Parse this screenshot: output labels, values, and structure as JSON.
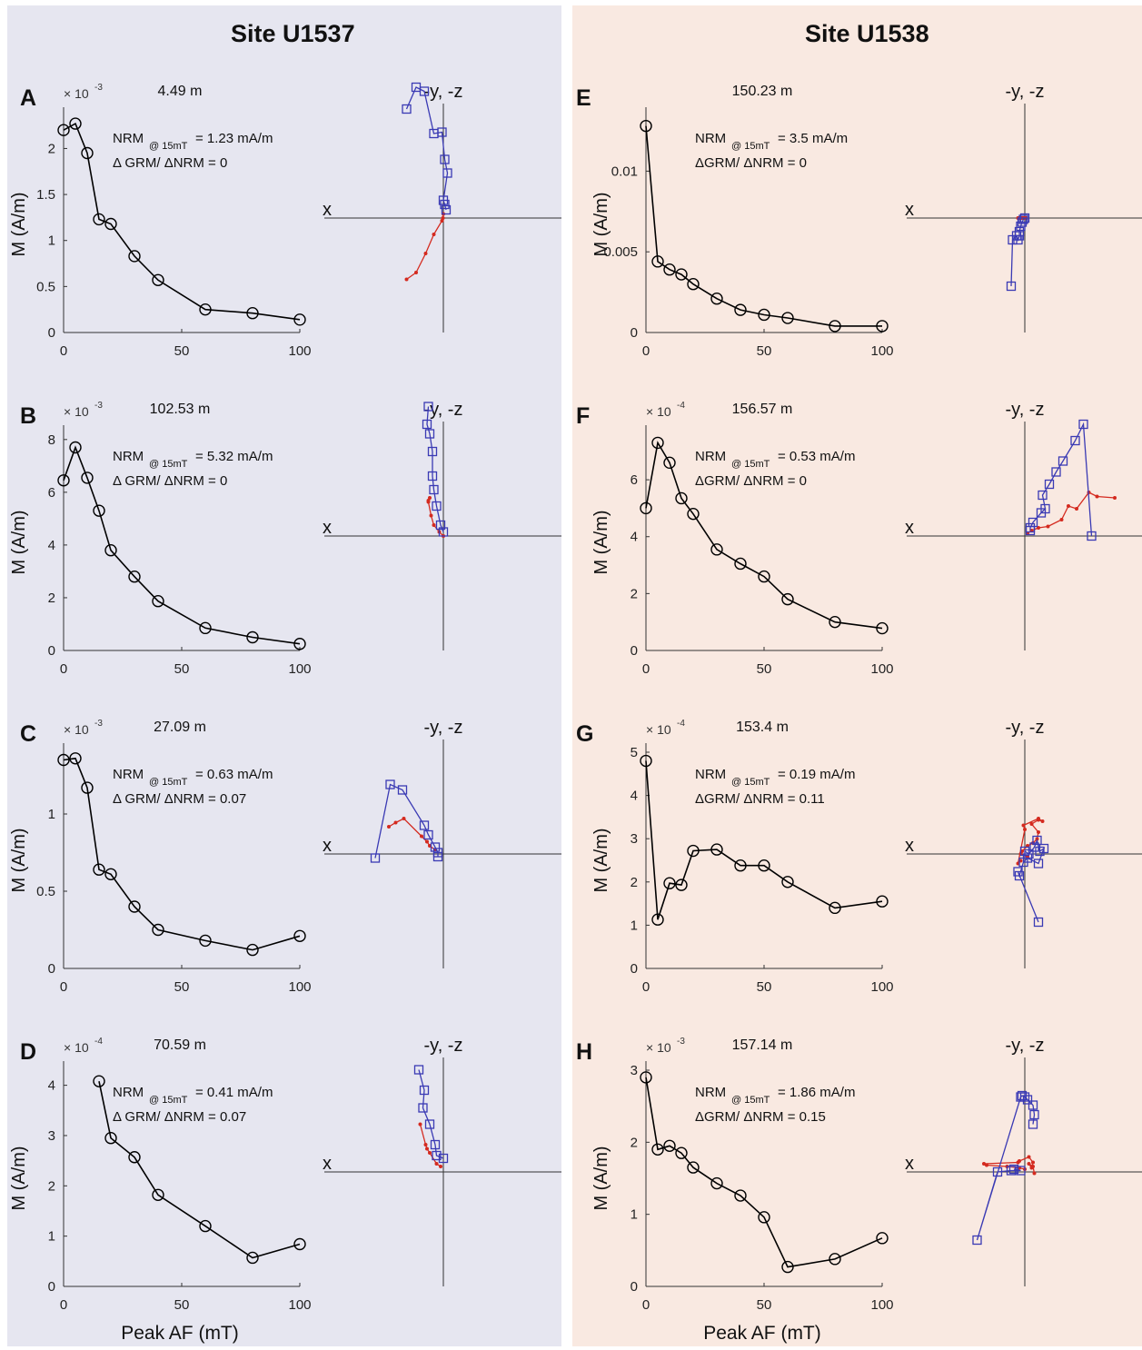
{
  "columns": [
    {
      "title": "Site U1537"
    },
    {
      "title": "Site U1538"
    }
  ],
  "colors": {
    "curve": "#000000",
    "horizontal": "#d42a1f",
    "vertical": "#3a3ab4"
  },
  "zijderveld_labels": {
    "axis_x": "x",
    "axis_top": "-y, -z"
  },
  "chart_data": [
    {
      "panel": "A",
      "type": "line",
      "depth": "4.49 m",
      "nrm": "NRM @ 15mT = 1.23 mA/m",
      "nrm_main": "NRM",
      "nrm_sub": "@ 15mT",
      "nrm_rest": "= 1.23 mA/m",
      "grm": "Δ GRM/ ΔNRM =  0",
      "exponent": "× 10-3",
      "exponent_base": "× 10",
      "exponent_power": "-3",
      "xlabel": "Peak AF (mT)",
      "ylabel": "M (A/m)",
      "xlim": [
        0,
        100
      ],
      "ylim": [
        0,
        2.35
      ],
      "xticks": [
        0,
        50,
        100
      ],
      "yticks": [
        0,
        0.5,
        1,
        1.5,
        2
      ],
      "x": [
        0,
        5,
        10,
        15,
        20,
        30,
        40,
        60,
        80,
        100
      ],
      "y": [
        2.2,
        2.27,
        1.95,
        1.23,
        1.18,
        0.83,
        0.57,
        0.25,
        0.21,
        0.14
      ]
    },
    {
      "panel": "B",
      "type": "line",
      "depth": "102.53 m",
      "nrm": "NRM @ 15mT = 5.32 mA/m",
      "nrm_main": "NRM",
      "nrm_sub": "@ 15mT",
      "nrm_rest": "= 5.32 mA/m",
      "grm": "Δ GRM/ ΔNRM =  0",
      "exponent": "× 10-3",
      "exponent_base": "× 10",
      "exponent_power": "-3",
      "xlabel": "Peak AF (mT)",
      "ylabel": "M (A/m)",
      "xlim": [
        0,
        100
      ],
      "ylim": [
        0,
        8.2
      ],
      "xticks": [
        0,
        50,
        100
      ],
      "yticks": [
        0,
        2,
        4,
        6,
        8
      ],
      "x": [
        0,
        5,
        10,
        15,
        20,
        30,
        40,
        60,
        80,
        100
      ],
      "y": [
        6.45,
        7.7,
        6.55,
        5.3,
        3.8,
        2.8,
        1.87,
        0.85,
        0.5,
        0.25
      ]
    },
    {
      "panel": "C",
      "type": "line",
      "depth": "27.09 m",
      "nrm": "NRM @ 15mT = 0.63 mA/m",
      "nrm_main": "NRM",
      "nrm_sub": "@ 15mT",
      "nrm_rest": "= 0.63 mA/m",
      "grm": "Δ GRM/ ΔNRM = 0.07",
      "exponent": "× 10-3",
      "exponent_base": "× 10",
      "exponent_power": "-3",
      "xlabel": "Peak AF (mT)",
      "ylabel": "M (A/m)",
      "xlim": [
        0,
        100
      ],
      "ylim": [
        0,
        1.4
      ],
      "xticks": [
        0,
        50,
        100
      ],
      "yticks": [
        0,
        0.5,
        1
      ],
      "x": [
        0,
        5,
        10,
        15,
        20,
        30,
        40,
        60,
        80,
        100
      ],
      "y": [
        1.35,
        1.36,
        1.17,
        0.64,
        0.61,
        0.4,
        0.25,
        0.18,
        0.12,
        0.21
      ]
    },
    {
      "panel": "D",
      "type": "line",
      "depth": "70.59 m",
      "nrm": "NRM @ 15mT = 0.41 mA/m",
      "nrm_main": "NRM",
      "nrm_sub": "@ 15mT",
      "nrm_rest": "= 0.41 mA/m",
      "grm": "Δ GRM/ ΔNRM = 0.07",
      "exponent": "× 10-4",
      "exponent_base": "× 10",
      "exponent_power": "-4",
      "xlabel": "Peak AF (mT)",
      "ylabel": "M (A/m)",
      "show_xlabel": true,
      "xlim": [
        0,
        100
      ],
      "ylim": [
        0,
        4.3
      ],
      "xticks": [
        0,
        50,
        100
      ],
      "yticks": [
        0,
        1,
        2,
        3,
        4
      ],
      "x": [
        15,
        20,
        30,
        40,
        60,
        80,
        100
      ],
      "y": [
        4.08,
        2.95,
        2.57,
        1.82,
        1.2,
        0.57,
        0.84
      ]
    },
    {
      "panel": "E",
      "type": "line",
      "depth": "150.23 m",
      "nrm": "NRM @ 15mT = 3.5 mA/m",
      "nrm_main": "NRM",
      "nrm_sub": "@ 15mT",
      "nrm_rest": "= 3.5 mA/m",
      "grm": "ΔGRM/ ΔNRM = 0",
      "exponent": "",
      "exponent_base": "",
      "exponent_power": "",
      "xlabel": "Peak AF (mT)",
      "ylabel": "M (A/m)",
      "xlim": [
        0,
        100
      ],
      "ylim": [
        0,
        0.0134
      ],
      "xticks": [
        0,
        50,
        100
      ],
      "yticks": [
        0,
        0.005,
        0.01
      ],
      "x": [
        0,
        5,
        10,
        15,
        20,
        30,
        40,
        50,
        60,
        80,
        100
      ],
      "y": [
        0.0128,
        0.0044,
        0.0039,
        0.0036,
        0.003,
        0.0021,
        0.0014,
        0.0011,
        0.0009,
        0.0004,
        0.0004
      ]
    },
    {
      "panel": "F",
      "type": "line",
      "depth": "156.57 m",
      "nrm": "NRM @ 15mT = 0.53 mA/m",
      "nrm_main": "NRM",
      "nrm_sub": "@ 15mT",
      "nrm_rest": "= 0.53 mA/m",
      "grm": "ΔGRM/ ΔNRM = 0",
      "exponent": "× 10-4",
      "exponent_base": "× 10",
      "exponent_power": "-4",
      "xlabel": "Peak AF (mT)",
      "ylabel": "M (A/m)",
      "xlim": [
        0,
        100
      ],
      "ylim": [
        0,
        7.6
      ],
      "xticks": [
        0,
        50,
        100
      ],
      "yticks": [
        0,
        2,
        4,
        6
      ],
      "x": [
        0,
        5,
        10,
        15,
        20,
        30,
        40,
        50,
        60,
        80,
        100
      ],
      "y": [
        5.0,
        7.3,
        6.6,
        5.35,
        4.8,
        3.55,
        3.05,
        2.6,
        1.8,
        1.0,
        0.78
      ]
    },
    {
      "panel": "G",
      "type": "line",
      "depth": "153.4 m",
      "nrm": "NRM @ 15mT = 0.19 mA/m",
      "nrm_main": "NRM",
      "nrm_sub": "@ 15mT",
      "nrm_rest": "= 0.19 mA/m",
      "grm": "ΔGRM/ ΔNRM = 0.11",
      "exponent": "× 10-4",
      "exponent_base": "× 10",
      "exponent_power": "-4",
      "xlabel": "Peak AF (mT)",
      "ylabel": "M (A/m)",
      "xlim": [
        0,
        100
      ],
      "ylim": [
        0,
        5
      ],
      "xticks": [
        0,
        50,
        100
      ],
      "yticks": [
        0,
        1,
        2,
        3,
        4,
        5
      ],
      "x": [
        0,
        5,
        10,
        15,
        20,
        30,
        40,
        50,
        60,
        80,
        100
      ],
      "y": [
        4.8,
        1.13,
        1.97,
        1.93,
        2.72,
        2.75,
        2.38,
        2.38,
        2.0,
        1.4,
        1.55
      ]
    },
    {
      "panel": "H",
      "type": "line",
      "depth": "157.14 m",
      "nrm": "NRM @ 15mT = 1.86 mA/m",
      "nrm_main": "NRM",
      "nrm_sub": "@ 15mT",
      "nrm_rest": "= 1.86 mA/m",
      "grm": "ΔGRM/ ΔNRM = 0.15",
      "exponent": "× 10-3",
      "exponent_base": "× 10",
      "exponent_power": "-3",
      "xlabel": "Peak AF (mT)",
      "ylabel": "M (A/m)",
      "show_xlabel": true,
      "xlim": [
        0,
        100
      ],
      "ylim": [
        0,
        3
      ],
      "xticks": [
        0,
        50,
        100
      ],
      "yticks": [
        0,
        1,
        2,
        3
      ],
      "x": [
        0,
        5,
        10,
        15,
        20,
        30,
        40,
        50,
        60,
        80,
        100
      ],
      "y": [
        2.9,
        1.9,
        1.95,
        1.85,
        1.65,
        1.43,
        1.26,
        0.96,
        0.27,
        0.38,
        0.67
      ]
    }
  ],
  "zijderveld": [
    {
      "panel": "A",
      "horizontal": [
        [
          0.0,
          0.03
        ],
        [
          -0.003,
          0.0
        ],
        [
          -0.01,
          -0.02
        ],
        [
          -0.07,
          -0.12
        ],
        [
          -0.13,
          -0.26
        ],
        [
          -0.2,
          -0.4
        ],
        [
          -0.27,
          -0.45
        ]
      ],
      "vertical": [
        [
          0.02,
          0.06
        ],
        [
          0.01,
          0.1
        ],
        [
          0.0,
          0.13
        ],
        [
          0.03,
          0.33
        ],
        [
          0.01,
          0.43
        ],
        [
          -0.01,
          0.63
        ],
        [
          -0.07,
          0.62
        ],
        [
          -0.14,
          0.93
        ],
        [
          -0.2,
          0.96
        ],
        [
          -0.27,
          0.8
        ]
      ]
    },
    {
      "panel": "B",
      "horizontal": [
        [
          0.0,
          0.0
        ],
        [
          -0.03,
          0.03
        ],
        [
          -0.07,
          0.08
        ],
        [
          -0.09,
          0.15
        ],
        [
          -0.11,
          0.25
        ],
        [
          -0.1,
          0.28
        ],
        [
          -0.11,
          0.26
        ]
      ],
      "vertical": [
        [
          0.0,
          0.03
        ],
        [
          -0.02,
          0.08
        ],
        [
          -0.05,
          0.22
        ],
        [
          -0.07,
          0.34
        ],
        [
          -0.08,
          0.44
        ],
        [
          -0.08,
          0.62
        ],
        [
          -0.1,
          0.75
        ],
        [
          -0.12,
          0.82
        ],
        [
          -0.11,
          0.95
        ]
      ]
    },
    {
      "panel": "C",
      "horizontal": [
        [
          -0.06,
          0.03
        ],
        [
          -0.1,
          0.06
        ],
        [
          -0.12,
          0.09
        ],
        [
          -0.16,
          0.13
        ],
        [
          -0.29,
          0.26
        ],
        [
          -0.35,
          0.23
        ],
        [
          -0.4,
          0.2
        ]
      ],
      "vertical": [
        [
          -0.04,
          -0.02
        ],
        [
          -0.04,
          0.01
        ],
        [
          -0.06,
          0.05
        ],
        [
          -0.11,
          0.14
        ],
        [
          -0.14,
          0.21
        ],
        [
          -0.3,
          0.47
        ],
        [
          -0.39,
          0.51
        ],
        [
          -0.5,
          -0.03
        ]
      ]
    },
    {
      "panel": "D",
      "horizontal": [
        [
          -0.02,
          0.04
        ],
        [
          -0.05,
          0.06
        ],
        [
          -0.1,
          0.14
        ],
        [
          -0.12,
          0.17
        ],
        [
          -0.13,
          0.2
        ],
        [
          -0.17,
          0.35
        ]
      ],
      "vertical": [
        [
          0.0,
          0.1
        ],
        [
          -0.05,
          0.12
        ],
        [
          -0.06,
          0.2
        ],
        [
          -0.1,
          0.35
        ],
        [
          -0.15,
          0.47
        ],
        [
          -0.14,
          0.6
        ],
        [
          -0.18,
          0.75
        ]
      ]
    },
    {
      "panel": "E",
      "horizontal": [
        [
          0.01,
          0.0
        ],
        [
          0.0,
          0.0
        ],
        [
          -0.02,
          0.0
        ],
        [
          -0.01,
          0.0
        ],
        [
          -0.02,
          0.0
        ],
        [
          -0.04,
          0.0
        ],
        [
          -0.05,
          0.0
        ],
        [
          -0.04,
          0.0
        ]
      ],
      "vertical": [
        [
          0.0,
          0.0
        ],
        [
          -0.01,
          -0.01
        ],
        [
          -0.02,
          -0.03
        ],
        [
          -0.03,
          -0.06
        ],
        [
          -0.04,
          -0.1
        ],
        [
          -0.04,
          -0.13
        ],
        [
          -0.05,
          -0.16
        ],
        [
          -0.06,
          -0.13
        ],
        [
          -0.09,
          -0.16
        ],
        [
          -0.1,
          -0.5
        ]
      ]
    },
    {
      "panel": "F",
      "horizontal": [
        [
          0.02,
          0.02
        ],
        [
          0.05,
          0.04
        ],
        [
          0.1,
          0.06
        ],
        [
          0.17,
          0.07
        ],
        [
          0.27,
          0.12
        ],
        [
          0.32,
          0.22
        ],
        [
          0.38,
          0.2
        ],
        [
          0.47,
          0.32
        ],
        [
          0.53,
          0.29
        ],
        [
          0.66,
          0.28
        ]
      ],
      "vertical": [
        [
          0.04,
          0.04
        ],
        [
          0.04,
          0.06
        ],
        [
          0.06,
          0.1
        ],
        [
          0.12,
          0.17
        ],
        [
          0.15,
          0.2
        ],
        [
          0.13,
          0.3
        ],
        [
          0.18,
          0.38
        ],
        [
          0.23,
          0.47
        ],
        [
          0.28,
          0.55
        ],
        [
          0.37,
          0.7
        ],
        [
          0.43,
          0.82
        ],
        [
          0.49,
          0.0
        ]
      ]
    },
    {
      "panel": "G",
      "horizontal": [
        [
          0.02,
          -0.02
        ],
        [
          -0.03,
          0.0
        ],
        [
          -0.02,
          0.02
        ],
        [
          0.02,
          0.06
        ],
        [
          0.06,
          0.08
        ],
        [
          0.09,
          0.11
        ],
        [
          0.1,
          0.16
        ],
        [
          0.05,
          0.22
        ],
        [
          0.1,
          0.25
        ],
        [
          0.13,
          0.24
        ],
        [
          0.1,
          0.26
        ],
        [
          -0.01,
          0.21
        ],
        [
          0.0,
          0.18
        ],
        [
          -0.05,
          -0.07
        ],
        [
          -0.03,
          -0.05
        ]
      ],
      "vertical": [
        [
          0.0,
          0.02
        ],
        [
          0.03,
          0.0
        ],
        [
          0.07,
          0.05
        ],
        [
          0.09,
          0.1
        ],
        [
          0.11,
          0.02
        ],
        [
          0.14,
          0.04
        ],
        [
          0.1,
          -0.07
        ],
        [
          0.02,
          -0.03
        ],
        [
          -0.01,
          -0.06
        ],
        [
          -0.04,
          -0.16
        ],
        [
          -0.05,
          -0.13
        ],
        [
          0.1,
          -0.5
        ]
      ]
    },
    {
      "panel": "H",
      "horizontal": [
        [
          0.0,
          0.02
        ],
        [
          -0.04,
          0.03
        ],
        [
          -0.13,
          0.04
        ],
        [
          -0.28,
          0.05
        ],
        [
          -0.3,
          0.06
        ],
        [
          -0.05,
          0.07
        ],
        [
          -0.04,
          0.08
        ],
        [
          0.03,
          0.11
        ],
        [
          0.06,
          0.07
        ],
        [
          0.05,
          0.03
        ],
        [
          0.03,
          0.06
        ],
        [
          0.06,
          0.04
        ],
        [
          0.07,
          -0.01
        ]
      ],
      "vertical": [
        [
          -0.08,
          0.02
        ],
        [
          -0.03,
          0.01
        ],
        [
          -0.1,
          0.01
        ],
        [
          -0.2,
          0.0
        ],
        [
          -0.35,
          -0.5
        ],
        [
          -0.03,
          0.55
        ],
        [
          -0.02,
          0.56
        ],
        [
          0.0,
          0.55
        ],
        [
          0.02,
          0.53
        ],
        [
          0.06,
          0.49
        ],
        [
          0.07,
          0.42
        ],
        [
          0.06,
          0.35
        ]
      ]
    }
  ]
}
